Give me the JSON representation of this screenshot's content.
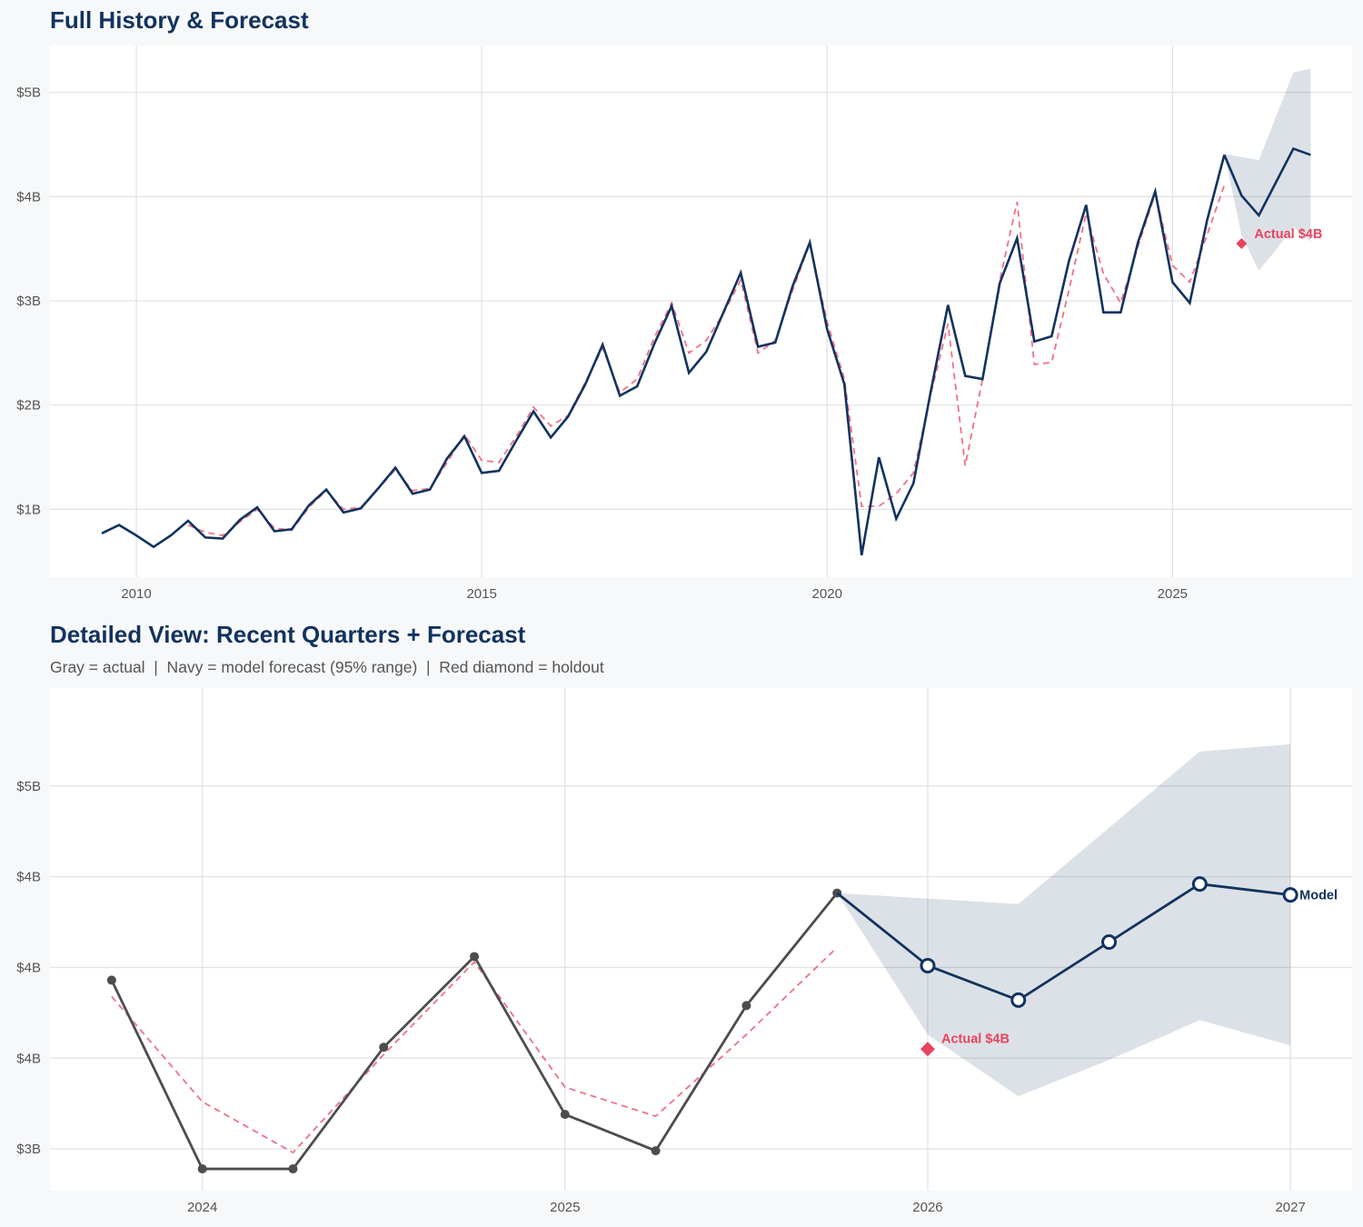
{
  "colors": {
    "background": "#f7f8fa",
    "panel": "#ffffff",
    "grid": "#e3e3e3",
    "navy": "#12335e",
    "red": "#e8435f",
    "gray_actual": "#4d4d4d",
    "band": "#12335e"
  },
  "chart_data": [
    {
      "type": "line",
      "title": "Full History & Forecast",
      "xlim": [
        2008.75,
        2027.6
      ],
      "ylim": [
        0.35,
        5.45
      ],
      "grid": true,
      "x_ticks": [
        2010,
        2015,
        2020,
        2025
      ],
      "x_tick_labels": [
        "2010",
        "2015",
        "2020",
        "2025"
      ],
      "y_ticks": [
        1,
        2,
        3,
        4,
        5
      ],
      "y_tick_labels": [
        "$1B",
        "$2B",
        "$3B",
        "$4B",
        "$5B"
      ],
      "series": [
        {
          "role": "actual",
          "color": "#12335e",
          "style": "solid",
          "x_start": 2009.5,
          "x_step": 0.25,
          "values": [
            0.77,
            0.85,
            0.75,
            0.64,
            0.75,
            0.89,
            0.73,
            0.72,
            0.9,
            1.02,
            0.79,
            0.81,
            1.04,
            1.19,
            0.97,
            1.01,
            1.2,
            1.4,
            1.15,
            1.19,
            1.49,
            1.7,
            1.35,
            1.37,
            1.66,
            1.94,
            1.69,
            1.89,
            2.2,
            2.58,
            2.09,
            2.18,
            2.59,
            2.95,
            2.31,
            2.51,
            2.89,
            3.27,
            2.56,
            2.6,
            3.14,
            3.56,
            2.73,
            2.2,
            0.56,
            1.5,
            0.91,
            1.25,
            2.13,
            2.96,
            2.28,
            2.25,
            3.17,
            3.6,
            2.61,
            2.66,
            3.38,
            3.92,
            2.89,
            2.89,
            3.56,
            4.05,
            3.18,
            2.98,
            3.77,
            4.4
          ]
        },
        {
          "role": "fitted",
          "color": "#e8435f",
          "style": "dashed",
          "x_start": 2010.75,
          "x_step": 0.25,
          "values": [
            0.85,
            0.78,
            0.75,
            0.88,
            1.0,
            0.82,
            0.8,
            1.02,
            1.18,
            1.0,
            1.02,
            1.2,
            1.38,
            1.18,
            1.2,
            1.45,
            1.72,
            1.47,
            1.45,
            1.7,
            1.98,
            1.8,
            1.9,
            2.22,
            2.55,
            2.12,
            2.25,
            2.65,
            2.98,
            2.5,
            2.62,
            2.88,
            3.2,
            2.5,
            2.62,
            3.1,
            3.55,
            2.8,
            2.25,
            1.03,
            1.03,
            1.15,
            1.35,
            2.1,
            2.78,
            1.42,
            2.25,
            3.2,
            3.95,
            2.39,
            2.41,
            3.1,
            3.84,
            3.26,
            2.98,
            3.52,
            4.03,
            3.34,
            3.18,
            3.63,
            4.11
          ]
        },
        {
          "role": "forecast",
          "color": "#12335e",
          "style": "solid",
          "x": [
            2025.75,
            2026.0,
            2026.25,
            2026.5,
            2026.75,
            2027.0
          ],
          "values": [
            4.4,
            4.01,
            3.82,
            4.14,
            4.46,
            4.4
          ]
        }
      ],
      "band": {
        "x": [
          2025.75,
          2026.0,
          2026.25,
          2026.5,
          2026.75,
          2027.0
        ],
        "upper": [
          4.41,
          4.38,
          4.35,
          4.77,
          5.19,
          5.23
        ],
        "lower": [
          4.41,
          3.63,
          3.29,
          3.49,
          3.71,
          3.57
        ]
      },
      "holdout": {
        "x": 2026.0,
        "y": 3.55,
        "label": "Actual $4B"
      }
    },
    {
      "type": "line",
      "title": "Detailed View: Recent Quarters + Forecast",
      "subtitle": "Gray = actual  |  Navy = model forecast (95% range)  |  Red diamond = holdout",
      "xlim": [
        2023.58,
        2027.17
      ],
      "ylim": [
        2.77,
        5.54
      ],
      "grid": true,
      "x_ticks": [
        2024,
        2025,
        2026,
        2027
      ],
      "x_tick_labels": [
        "2024",
        "2025",
        "2026",
        "2027"
      ],
      "y_ticks": [
        3.0,
        3.5,
        4.0,
        4.5,
        5.0
      ],
      "y_tick_labels": [
        "$3B",
        "$4B",
        "$4B",
        "$4B",
        "$5B"
      ],
      "series": [
        {
          "role": "actual",
          "color": "#4d4d4d",
          "style": "solid-markers",
          "x": [
            2023.75,
            2024.0,
            2024.25,
            2024.5,
            2024.75,
            2025.0,
            2025.25,
            2025.5,
            2025.75
          ],
          "values": [
            3.93,
            2.89,
            2.89,
            3.56,
            4.06,
            3.19,
            2.99,
            3.79,
            4.41
          ]
        },
        {
          "role": "fitted",
          "color": "#e8435f",
          "style": "dashed",
          "x": [
            2023.75,
            2024.0,
            2024.25,
            2024.5,
            2024.75,
            2025.0,
            2025.25,
            2025.5,
            2025.75
          ],
          "values": [
            3.84,
            3.26,
            2.98,
            3.52,
            4.03,
            3.34,
            3.18,
            3.63,
            4.11
          ]
        },
        {
          "role": "forecast",
          "name": "Model",
          "color": "#12335e",
          "style": "solid-open-markers",
          "x": [
            2025.75,
            2026.0,
            2026.25,
            2026.5,
            2026.75,
            2027.0
          ],
          "values": [
            4.41,
            4.01,
            3.82,
            4.14,
            4.46,
            4.4
          ]
        }
      ],
      "band": {
        "x": [
          2025.75,
          2026.0,
          2026.25,
          2026.5,
          2026.75,
          2027.0
        ],
        "upper": [
          4.41,
          4.38,
          4.35,
          4.77,
          5.19,
          5.23
        ],
        "lower": [
          4.41,
          3.63,
          3.29,
          3.49,
          3.71,
          3.57
        ]
      },
      "holdout": {
        "x": 2026.0,
        "y": 3.55,
        "label": "Actual $4B"
      }
    }
  ]
}
